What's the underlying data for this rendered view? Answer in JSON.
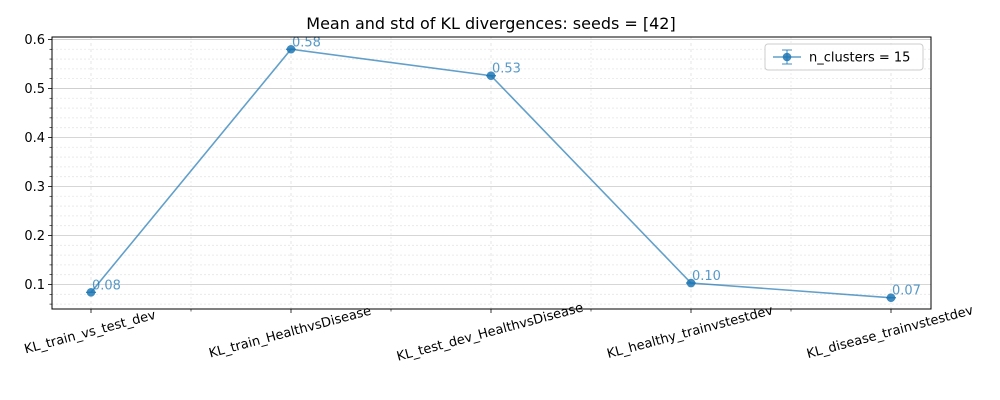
{
  "chart_data": {
    "type": "line",
    "title": "Mean and std of KL divergences: seeds = [42]",
    "xlabel": "",
    "ylabel": "",
    "categories": [
      "KL_train_vs_test_dev",
      "KL_train_HealthvsDisease",
      "KL_test_dev_HealthvsDisease",
      "KL_healthy_trainvstestdev",
      "KL_disease_trainvstestdev"
    ],
    "series": [
      {
        "name": "n_clusters = 15",
        "values": [
          0.084,
          0.58,
          0.526,
          0.103,
          0.073
        ],
        "labels": [
          "0.08",
          "0.58",
          "0.53",
          "0.10",
          "0.07"
        ],
        "std": [
          0,
          0,
          0,
          0,
          0
        ],
        "color": "#1f77b4"
      }
    ],
    "ylim": [
      0.05,
      0.605
    ],
    "yticks": [
      0.1,
      0.2,
      0.3,
      0.4,
      0.5,
      0.6
    ],
    "ytick_labels": [
      "0.1",
      "0.2",
      "0.3",
      "0.4",
      "0.5",
      "0.6"
    ],
    "grid": true,
    "minor_grid": true,
    "legend_position": "top-right"
  }
}
